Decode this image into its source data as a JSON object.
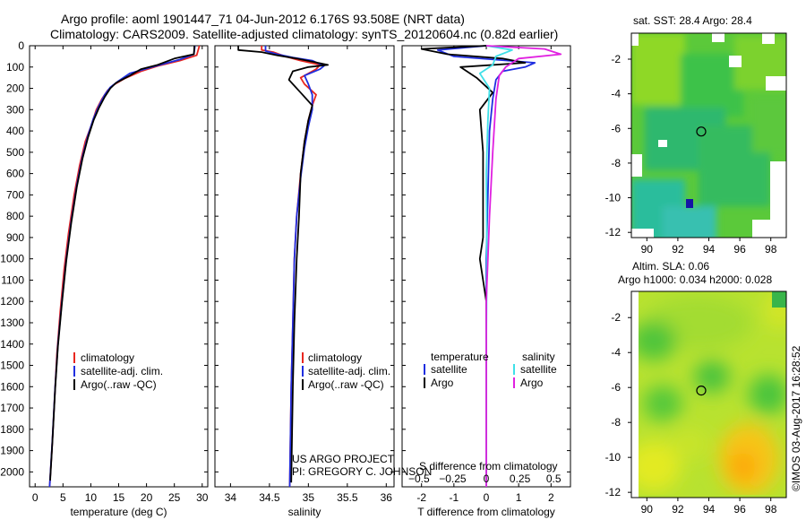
{
  "header": {
    "title_line1": "Argo profile: aoml 1901447_71 04-Jun-2012 6.176S 93.508E (NRT data)",
    "title_line2": "Climatology: CARS2009. Satellite-adjusted climatology: synTS_20120604.nc (0.82d earlier)"
  },
  "footer": {
    "credit": "©IMOS 03-Aug-2017 16:28:52",
    "project": "US ARGO PROJECT",
    "pi": "PI: GREGORY C. JOHNSON"
  },
  "colors": {
    "climatology": "#e8261f",
    "satellite": "#1f2ee0",
    "argo": "#000000",
    "sat_salinity": "#3fe0e8",
    "argo_salinity": "#e020e0"
  },
  "chart_data": [
    {
      "type": "line",
      "name": "temperature-profile",
      "xlabel": "temperature (deg C)",
      "ylabel": "depth",
      "xlim": [
        -1,
        31
      ],
      "ylim": [
        0,
        2070
      ],
      "xticks": [
        0,
        5,
        10,
        15,
        20,
        25,
        30
      ],
      "yticks": [
        0,
        100,
        200,
        300,
        400,
        500,
        600,
        700,
        800,
        900,
        1000,
        1100,
        1200,
        1300,
        1400,
        1500,
        1600,
        1700,
        1800,
        1900,
        2000
      ],
      "legend": [
        "climatology",
        "satellite-adj. clim.",
        "Argo(..raw -QC)"
      ],
      "series": [
        {
          "name": "climatology",
          "color": "#e8261f",
          "points": [
            [
              29.5,
              0
            ],
            [
              29,
              45
            ],
            [
              26,
              70
            ],
            [
              22,
              95
            ],
            [
              19,
              120
            ],
            [
              16,
              155
            ],
            [
              14,
              185
            ],
            [
              13,
              210
            ],
            [
              12,
              250
            ],
            [
              11,
              300
            ],
            [
              10,
              380
            ],
            [
              9,
              450
            ],
            [
              8,
              560
            ],
            [
              7,
              700
            ],
            [
              6,
              880
            ],
            [
              5.2,
              1050
            ],
            [
              4.5,
              1250
            ],
            [
              3.9,
              1450
            ],
            [
              3.4,
              1700
            ],
            [
              3,
              1900
            ],
            [
              2.6,
              2070
            ]
          ]
        },
        {
          "name": "satellite-adj. clim.",
          "color": "#1f2ee0",
          "points": [
            [
              28.7,
              0
            ],
            [
              28.5,
              40
            ],
            [
              26,
              65
            ],
            [
              21,
              100
            ],
            [
              17,
              130
            ],
            [
              15,
              165
            ],
            [
              13.5,
              195
            ],
            [
              12.5,
              230
            ],
            [
              11.5,
              280
            ],
            [
              10.5,
              340
            ],
            [
              9.5,
              420
            ],
            [
              8.5,
              520
            ],
            [
              7.5,
              650
            ],
            [
              6.5,
              820
            ],
            [
              5.6,
              1000
            ],
            [
              4.8,
              1200
            ],
            [
              4.1,
              1400
            ],
            [
              3.6,
              1600
            ],
            [
              3.1,
              1850
            ],
            [
              2.6,
              2070
            ]
          ]
        },
        {
          "name": "Argo(..raw -QC)",
          "color": "#000000",
          "points": [
            [
              28.6,
              0
            ],
            [
              28.5,
              40
            ],
            [
              25,
              60
            ],
            [
              22,
              90
            ],
            [
              19,
              110
            ],
            [
              17,
              140
            ],
            [
              14.5,
              175
            ],
            [
              13.5,
              200
            ],
            [
              12.5,
              240
            ],
            [
              11.5,
              290
            ],
            [
              10.5,
              350
            ],
            [
              9.5,
              430
            ],
            [
              8.5,
              530
            ],
            [
              7.5,
              660
            ],
            [
              6.5,
              830
            ],
            [
              5.6,
              1010
            ],
            [
              4.8,
              1210
            ],
            [
              4.1,
              1410
            ],
            [
              3.6,
              1610
            ],
            [
              3.1,
              1860
            ],
            [
              2.7,
              2040
            ]
          ]
        }
      ]
    },
    {
      "type": "line",
      "name": "salinity-profile",
      "xlabel": "salinity",
      "xlim": [
        33.8,
        36.1
      ],
      "ylim": [
        0,
        2070
      ],
      "xticks": [
        34,
        34.5,
        35,
        35.5,
        36
      ],
      "xtick_labels": [
        "34",
        "34.5",
        "35",
        "35.5",
        "36"
      ],
      "legend": [
        "climatology",
        "satellite-adj. clim.",
        "Argo(..raw -QC)"
      ],
      "series": [
        {
          "name": "climatology",
          "color": "#e8261f",
          "points": [
            [
              34.4,
              0
            ],
            [
              34.4,
              20
            ],
            [
              34.55,
              30
            ],
            [
              34.7,
              50
            ],
            [
              34.9,
              70
            ],
            [
              35.15,
              90
            ],
            [
              35.1,
              110
            ],
            [
              34.9,
              150
            ],
            [
              34.95,
              180
            ],
            [
              35.1,
              230
            ],
            [
              35.05,
              280
            ],
            [
              35.0,
              350
            ],
            [
              34.95,
              450
            ],
            [
              34.9,
              600
            ],
            [
              34.85,
              800
            ],
            [
              34.82,
              1000
            ],
            [
              34.8,
              1300
            ],
            [
              34.78,
              1600
            ],
            [
              34.76,
              2070
            ]
          ]
        },
        {
          "name": "satellite-adj. clim.",
          "color": "#1f2ee0",
          "points": [
            [
              34.45,
              0
            ],
            [
              34.45,
              25
            ],
            [
              34.6,
              40
            ],
            [
              34.8,
              55
            ],
            [
              35.05,
              70
            ],
            [
              35.2,
              95
            ],
            [
              35.15,
              110
            ],
            [
              34.95,
              140
            ],
            [
              35.0,
              180
            ],
            [
              35.05,
              230
            ],
            [
              35.05,
              300
            ],
            [
              35.0,
              380
            ],
            [
              34.95,
              480
            ],
            [
              34.9,
              620
            ],
            [
              34.85,
              800
            ],
            [
              34.82,
              1000
            ],
            [
              34.8,
              1300
            ],
            [
              34.78,
              1600
            ],
            [
              34.76,
              2070
            ]
          ]
        },
        {
          "name": "Argo(..raw -QC)",
          "color": "#000000",
          "points": [
            [
              34.1,
              0
            ],
            [
              34.1,
              20
            ],
            [
              34.4,
              30
            ],
            [
              34.6,
              45
            ],
            [
              34.85,
              60
            ],
            [
              35.05,
              75
            ],
            [
              35.25,
              90
            ],
            [
              35.0,
              100
            ],
            [
              34.8,
              120
            ],
            [
              34.75,
              160
            ],
            [
              34.9,
              220
            ],
            [
              35.05,
              280
            ],
            [
              35.0,
              350
            ],
            [
              34.95,
              450
            ],
            [
              34.9,
              600
            ],
            [
              34.88,
              800
            ],
            [
              34.85,
              1000
            ],
            [
              34.82,
              1300
            ],
            [
              34.8,
              1600
            ],
            [
              34.78,
              2050
            ]
          ]
        }
      ]
    },
    {
      "type": "line",
      "name": "difference-profile",
      "xlabel": "T difference from climatology",
      "xlabel_top": "S difference from climatology",
      "xlim": [
        -2.6,
        2.6
      ],
      "ylim": [
        0,
        2070
      ],
      "xticks": [
        -2,
        -1,
        0,
        1,
        2
      ],
      "xticks_top": [
        -0.5,
        -0.25,
        0,
        0.25,
        0.5
      ],
      "xticks_top_labels": [
        "−0.5",
        "−0.25",
        "0",
        "0.25",
        "0.5"
      ],
      "legend_temperature": {
        "title": "temperature",
        "items": [
          "satellite",
          "Argo"
        ]
      },
      "legend_salinity": {
        "title": "salinity",
        "items": [
          "satellite",
          "Argo"
        ]
      },
      "series": [
        {
          "name": "T satellite",
          "color": "#1f2ee0",
          "points": [
            [
              0,
              0
            ],
            [
              -1.5,
              20
            ],
            [
              -1.0,
              50
            ],
            [
              1.5,
              80
            ],
            [
              1.2,
              100
            ],
            [
              0.5,
              120
            ],
            [
              0.3,
              160
            ],
            [
              0.2,
              250
            ],
            [
              0.1,
              400
            ],
            [
              0.05,
              700
            ],
            [
              0,
              1000
            ],
            [
              0,
              2070
            ]
          ]
        },
        {
          "name": "T Argo",
          "color": "#000000",
          "points": [
            [
              0,
              0
            ],
            [
              -2.0,
              15
            ],
            [
              -1.2,
              40
            ],
            [
              0.5,
              60
            ],
            [
              1.2,
              80
            ],
            [
              -0.8,
              100
            ],
            [
              -0.3,
              150
            ],
            [
              0.2,
              220
            ],
            [
              -0.2,
              300
            ],
            [
              -0.1,
              500
            ],
            [
              -0.1,
              900
            ],
            [
              -0.2,
              1000
            ],
            [
              0,
              1200
            ],
            [
              0,
              2070
            ]
          ]
        },
        {
          "name": "S satellite",
          "color": "#3fe0e8",
          "points": [
            [
              0,
              0
            ],
            [
              0.8,
              20
            ],
            [
              0.3,
              50
            ],
            [
              0.2,
              90
            ],
            [
              -0.2,
              130
            ],
            [
              0.1,
              200
            ],
            [
              0.05,
              350
            ],
            [
              0,
              600
            ],
            [
              0.02,
              1000
            ],
            [
              0,
              1400
            ],
            [
              0,
              2070
            ]
          ]
        },
        {
          "name": "S Argo",
          "color": "#e020e0",
          "points": [
            [
              0,
              0
            ],
            [
              1.8,
              15
            ],
            [
              2.3,
              40
            ],
            [
              1.0,
              60
            ],
            [
              0.6,
              100
            ],
            [
              0.4,
              140
            ],
            [
              0.3,
              250
            ],
            [
              0.2,
              500
            ],
            [
              0.1,
              800
            ],
            [
              0,
              1200
            ],
            [
              0,
              2070
            ]
          ]
        }
      ]
    },
    {
      "type": "heatmap",
      "name": "sst-map",
      "title": "sat. SST: 28.4  Argo: 28.4",
      "xlim": [
        89,
        99
      ],
      "ylim": [
        -12.3,
        -0.5
      ],
      "xticks": [
        90,
        92,
        94,
        96,
        98
      ],
      "yticks": [
        -2,
        -4,
        -6,
        -8,
        -10,
        -12
      ],
      "marker": {
        "lon": 93.508,
        "lat": -6.176
      }
    },
    {
      "type": "heatmap",
      "name": "sla-map",
      "title_line1": "Altim. SLA: 0.06",
      "title_line2": "Argo h1000: 0.034 h2000: 0.028",
      "xlim": [
        89,
        99
      ],
      "ylim": [
        -12.3,
        -0.5
      ],
      "xticks": [
        90,
        92,
        94,
        96,
        98
      ],
      "yticks": [
        -2,
        -4,
        -6,
        -8,
        -10,
        -12
      ],
      "marker": {
        "lon": 93.508,
        "lat": -6.176
      }
    }
  ]
}
